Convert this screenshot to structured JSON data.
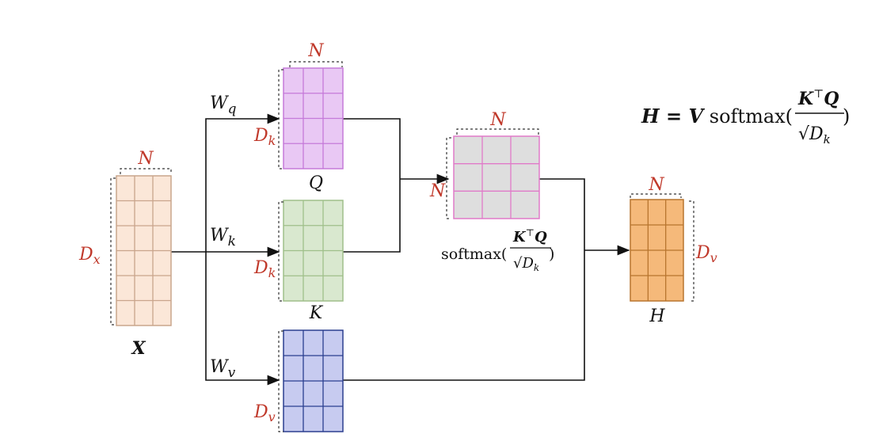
{
  "matrices": {
    "x": {
      "name": "X",
      "width_label": "N",
      "height_label": "D",
      "height_sub": "x",
      "rows": 6,
      "cols": 3,
      "fill": "#fbe7d8",
      "stroke": "#c9a58c"
    },
    "q": {
      "name": "Q",
      "width_label": "N",
      "height_label": "D",
      "height_sub": "k",
      "rows": 4,
      "cols": 3,
      "fill": "#e9c8f4",
      "stroke": "#c57ad9"
    },
    "k": {
      "name": "K",
      "width_label": "N",
      "height_label": "D",
      "height_sub": "k",
      "rows": 4,
      "cols": 3,
      "fill": "#d9e8cf",
      "stroke": "#9fbf8a"
    },
    "v": {
      "name": "",
      "width_label": "",
      "height_label": "D",
      "height_sub": "v",
      "rows": 4,
      "cols": 3,
      "fill": "#c7cbf0",
      "stroke": "#2b3f8f"
    },
    "a": {
      "name": "",
      "width_label": "N",
      "height_label": "N",
      "rows": 3,
      "cols": 3,
      "fill": "#dedede",
      "stroke": "#e07ac9"
    },
    "h": {
      "name": "H",
      "width_label": "N",
      "height_label": "D",
      "height_sub": "v",
      "rows": 4,
      "cols": 3,
      "fill": "#f5b97a",
      "stroke": "#b8752f"
    }
  },
  "weights": {
    "wq": {
      "base": "W",
      "sub": "q"
    },
    "wk": {
      "base": "W",
      "sub": "k"
    },
    "wv": {
      "base": "W",
      "sub": "v"
    }
  },
  "softmax_label": {
    "fn": "softmax(",
    "num_k": "K",
    "num_t": "⊤",
    "num_q": "Q",
    "den_sqrt": "√",
    "den_d": "D",
    "den_sub": "k",
    "close": ")"
  },
  "equation": {
    "lhs": "H",
    "eq": " = ",
    "v": "V",
    "fn": " softmax(",
    "num_k": "K",
    "num_t": "⊤",
    "num_q": "Q",
    "den_sqrt": "√",
    "den_d": "D",
    "den_sub": "k",
    "close": ")"
  },
  "colors": {
    "label_red": "#c0392b",
    "wire": "#111111"
  }
}
